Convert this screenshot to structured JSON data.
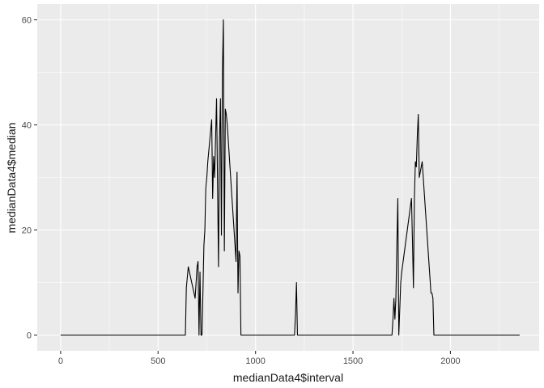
{
  "chart_data": {
    "type": "line",
    "title": "",
    "xlabel": "medianData4$interval",
    "ylabel": "medianData4$median",
    "xlim": [
      -120,
      2455
    ],
    "ylim": [
      -3,
      63
    ],
    "x_ticks": [
      0,
      500,
      1000,
      1500,
      2000
    ],
    "x_tick_labels": [
      "0",
      "500",
      "1000",
      "1500",
      "2000"
    ],
    "y_ticks": [
      0,
      20,
      40,
      60
    ],
    "y_tick_labels": [
      "0",
      "20",
      "40",
      "60"
    ],
    "grid": true,
    "legend": "none",
    "colors": {
      "panel": "#ebebeb",
      "grid": "#ffffff",
      "line": "#000000"
    },
    "series": [
      {
        "x": [
          0,
          640,
          645,
          655,
          690,
          700,
          705,
          710,
          715,
          720,
          725,
          730,
          735,
          740,
          745,
          750,
          755,
          760,
          765,
          770,
          775,
          780,
          785,
          790,
          800,
          810,
          815,
          820,
          825,
          830,
          835,
          840,
          845,
          850,
          855,
          900,
          905,
          910,
          915,
          920,
          925,
          1200,
          1205,
          1210,
          1215,
          1700,
          1705,
          1710,
          1715,
          1720,
          1725,
          1730,
          1735,
          1740,
          1745,
          1750,
          1800,
          1805,
          1810,
          1815,
          1820,
          1825,
          1830,
          1835,
          1840,
          1845,
          1850,
          1855,
          1900,
          1905,
          1910,
          1915,
          1920,
          2355
        ],
        "y": [
          0,
          0,
          9,
          13,
          7,
          13,
          14,
          0,
          12,
          0,
          0,
          8,
          17,
          20,
          28,
          30,
          33,
          35,
          37,
          39,
          41,
          26,
          34,
          30,
          45,
          13,
          37,
          45,
          19,
          50,
          60,
          16,
          43,
          42,
          40,
          14,
          31,
          8,
          16,
          15,
          0,
          0,
          4,
          10,
          0,
          0,
          3,
          7,
          3,
          7,
          17,
          26,
          0,
          5,
          10,
          12,
          26,
          18,
          9,
          26,
          33,
          32,
          38,
          42,
          30,
          31,
          32,
          33,
          8,
          8,
          7,
          0,
          0,
          0
        ]
      }
    ]
  }
}
